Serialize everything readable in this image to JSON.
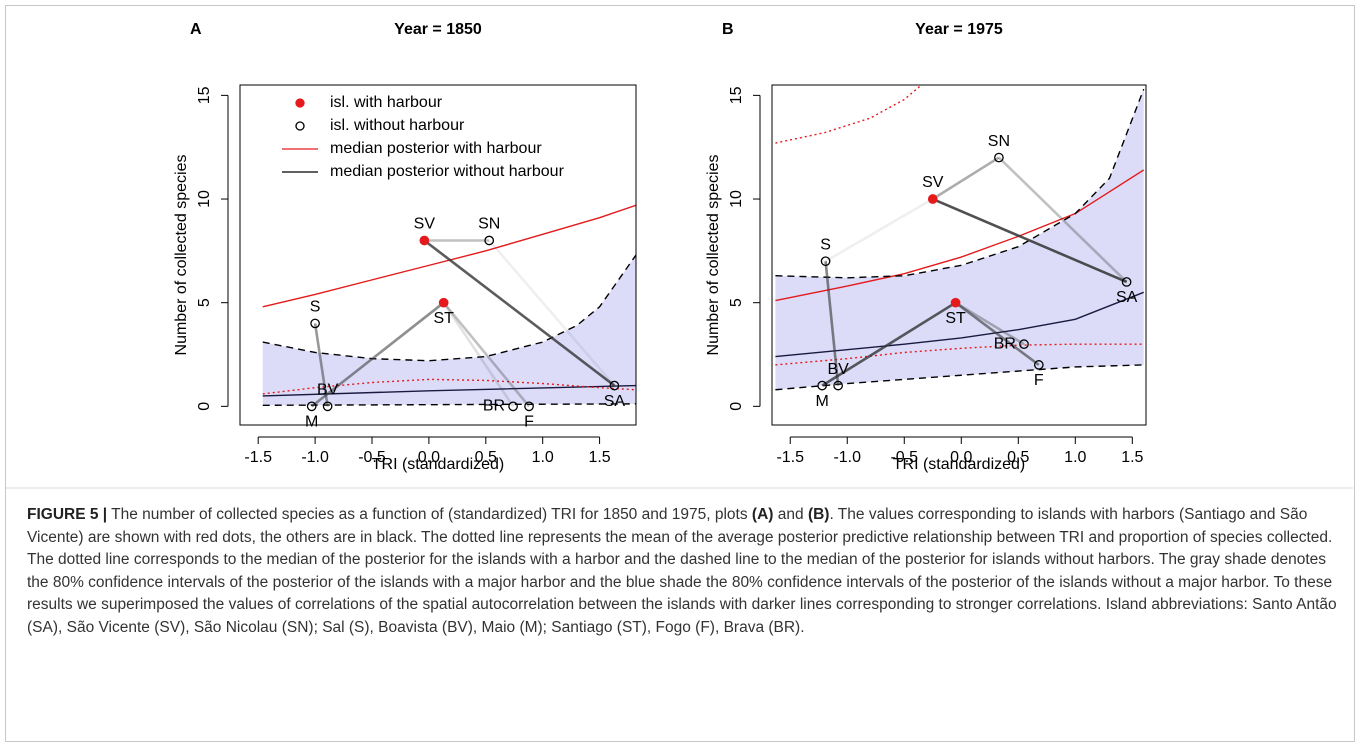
{
  "chart_data": [
    {
      "type": "scatter",
      "panel": "A",
      "title": "Year = 1850",
      "x_label": "TRI (standardized)",
      "y_label": "Number of collected species",
      "xlim": [
        -1.66,
        1.82
      ],
      "ylim": [
        -0.9,
        15.5
      ],
      "xticks": [
        {
          "value": -1.5,
          "label": "-1.5"
        },
        {
          "value": -1,
          "label": "-1.0"
        },
        {
          "value": -0.5,
          "label": "-0.5"
        },
        {
          "value": 0,
          "label": "0.0"
        },
        {
          "value": 0.5,
          "label": "0.5"
        },
        {
          "value": 1,
          "label": "1.0"
        },
        {
          "value": 1.5,
          "label": "1.5"
        }
      ],
      "yticks": [
        0,
        5,
        10,
        15
      ],
      "points": {
        "labels": [
          "SV",
          "SN",
          "S",
          "ST",
          "BV",
          "M",
          "BR",
          "F",
          "SA"
        ],
        "x": [
          -0.04,
          0.53,
          -1.0,
          0.13,
          -0.89,
          -1.03,
          0.74,
          0.88,
          1.63
        ],
        "values": [
          8,
          8,
          4,
          5,
          0,
          0,
          0,
          0,
          1
        ],
        "harbour": [
          true,
          false,
          false,
          true,
          false,
          false,
          false,
          false,
          false
        ]
      },
      "links": [
        {
          "from": 0,
          "to": 1,
          "strength": 0.3
        },
        {
          "from": 0,
          "to": 8,
          "strength": 0.8
        },
        {
          "from": 1,
          "to": 8,
          "strength": 0.08
        },
        {
          "from": 3,
          "to": 5,
          "strength": 0.55
        },
        {
          "from": 3,
          "to": 7,
          "strength": 0.3
        },
        {
          "from": 2,
          "to": 4,
          "strength": 0.5
        },
        {
          "from": 3,
          "to": 6,
          "strength": 0.15
        }
      ],
      "series": [
        {
          "name": "median posterior with harbour",
          "color": "#e41a1c",
          "style": "solid",
          "x": [
            -1.46,
            -1,
            -0.5,
            0,
            0.5,
            1,
            1.5,
            1.82
          ],
          "values": [
            4.8,
            5.4,
            6.1,
            6.8,
            7.5,
            8.3,
            9.1,
            9.7
          ]
        },
        {
          "name": "median posterior without harbour",
          "color": "#1a1a40",
          "style": "solid",
          "x": [
            -1.46,
            0,
            1.82
          ],
          "values": [
            0.5,
            0.75,
            1.0
          ]
        },
        {
          "color": "#e41a1c",
          "style": "dotted",
          "x": [
            -1.46,
            -1,
            -0.5,
            0,
            0.5,
            1,
            1.5,
            1.82
          ],
          "values": [
            0.6,
            0.9,
            1.15,
            1.3,
            1.25,
            1.1,
            0.9,
            0.8
          ]
        },
        {
          "color": "#000000",
          "style": "dashed",
          "band": "upper",
          "x": [
            -1.46,
            -1,
            -0.5,
            0,
            0.5,
            1,
            1.3,
            1.5,
            1.82
          ],
          "values": [
            3.1,
            2.6,
            2.3,
            2.2,
            2.4,
            3.1,
            3.9,
            4.8,
            7.3
          ]
        },
        {
          "color": "#000000",
          "style": "dashed",
          "band": "lower",
          "x": [
            -1.46,
            0,
            1.82
          ],
          "values": [
            0.05,
            0.08,
            0.12
          ]
        }
      ],
      "band_color": "#dcdcf8",
      "legend": [
        {
          "label": "isl. with harbour",
          "marker": "filled",
          "color": "#e41a1c"
        },
        {
          "label": "isl. without harbour",
          "marker": "open",
          "color": "#000000"
        },
        {
          "label": "median posterior with harbour",
          "marker": "line",
          "color": "#e41a1c"
        },
        {
          "label": "median posterior without harbour",
          "marker": "line",
          "color": "#000000"
        }
      ]
    },
    {
      "type": "scatter",
      "panel": "B",
      "title": "Year = 1975",
      "x_label": "TRI (standardized)",
      "y_label": "Number of collected species",
      "xlim": [
        -1.66,
        1.62
      ],
      "ylim": [
        -0.9,
        15.5
      ],
      "xticks": [
        {
          "value": -1.5,
          "label": "-1.5"
        },
        {
          "value": -1,
          "label": "-1.0"
        },
        {
          "value": -0.5,
          "label": "-0.5"
        },
        {
          "value": 0,
          "label": "0.0"
        },
        {
          "value": 0.5,
          "label": "0.5"
        },
        {
          "value": 1,
          "label": "1.0"
        },
        {
          "value": 1.5,
          "label": "1.5"
        }
      ],
      "yticks": [
        0,
        5,
        10,
        15
      ],
      "points": {
        "labels": [
          "SV",
          "SN",
          "S",
          "SA",
          "ST",
          "BR",
          "F",
          "BV",
          "M"
        ],
        "x": [
          -0.25,
          0.33,
          -1.19,
          1.45,
          -0.05,
          0.55,
          0.68,
          -1.08,
          -1.22
        ],
        "values": [
          10,
          12,
          7,
          6,
          5,
          3,
          2,
          1,
          1
        ],
        "harbour": [
          true,
          false,
          false,
          false,
          true,
          false,
          false,
          false,
          false
        ]
      },
      "links": [
        {
          "from": 0,
          "to": 1,
          "strength": 0.4
        },
        {
          "from": 0,
          "to": 3,
          "strength": 0.85
        },
        {
          "from": 1,
          "to": 3,
          "strength": 0.3
        },
        {
          "from": 2,
          "to": 0,
          "strength": 0.08
        },
        {
          "from": 2,
          "to": 7,
          "strength": 0.6
        },
        {
          "from": 4,
          "to": 8,
          "strength": 0.8
        },
        {
          "from": 4,
          "to": 6,
          "strength": 0.6
        },
        {
          "from": 4,
          "to": 5,
          "strength": 0.35
        }
      ],
      "series": [
        {
          "color": "#e41a1c",
          "style": "solid",
          "x": [
            -1.63,
            -1,
            -0.5,
            0,
            0.5,
            1,
            1.6
          ],
          "values": [
            5.1,
            5.8,
            6.4,
            7.2,
            8.2,
            9.3,
            11.4
          ]
        },
        {
          "color": "#1a1a40",
          "style": "solid",
          "x": [
            -1.63,
            -0.5,
            0,
            0.5,
            1,
            1.6
          ],
          "values": [
            2.4,
            3.0,
            3.3,
            3.7,
            4.2,
            5.5
          ]
        },
        {
          "color": "#e41a1c",
          "style": "dotted",
          "x": [
            -1.63,
            -1,
            -0.5,
            0,
            0.5,
            1,
            1.6
          ],
          "values": [
            2.0,
            2.3,
            2.6,
            2.8,
            2.95,
            3.0,
            3.0
          ]
        },
        {
          "color": "#e41a1c",
          "style": "dotted",
          "x": [
            -1.63,
            -1.2,
            -0.8,
            -0.5,
            -0.35
          ],
          "values": [
            12.7,
            13.2,
            13.9,
            14.8,
            15.5
          ]
        },
        {
          "color": "#000000",
          "style": "dashed",
          "band": "upper",
          "x": [
            -1.63,
            -1,
            -0.5,
            0,
            0.5,
            1,
            1.3,
            1.6
          ],
          "values": [
            6.3,
            6.2,
            6.3,
            6.8,
            7.7,
            9.3,
            11,
            15.3
          ]
        },
        {
          "color": "#000000",
          "style": "dashed",
          "band": "lower",
          "x": [
            -1.63,
            -1,
            0,
            1,
            1.6
          ],
          "values": [
            0.8,
            1.1,
            1.5,
            1.9,
            2.0
          ]
        }
      ],
      "band_color": "#dcdcf8"
    }
  ],
  "caption": {
    "label": "FIGURE 5 |",
    "text_1": " The number of collected species as a function of (standardized) TRI for 1850 and 1975, plots ",
    "a": "(A)",
    "text_2": " and ",
    "b": "(B)",
    "text_3": ". The values corresponding to islands with harbors (Santiago and São Vicente) are shown with red dots, the others are in black. The dotted line represents the mean of the average posterior predictive relationship between TRI and proportion of species collected. The dotted line corresponds to the median of the posterior for the islands with a harbor and the dashed line to the median of the posterior for islands without harbors. The gray shade denotes the 80% confidence intervals of the posterior of the islands with a major harbor and the blue shade the 80% confidence intervals of the posterior of the islands without a major harbor. To these results we superimposed the values of correlations of the spatial autocorrelation between the islands with darker lines corresponding to stronger correlations. Island abbreviations: Santo Antão (SA), São Vicente (SV), São Nicolau (SN); Sal (S), Boavista (BV), Maio (M); Santiago (ST), Fogo (F), Brava (BR)."
  }
}
